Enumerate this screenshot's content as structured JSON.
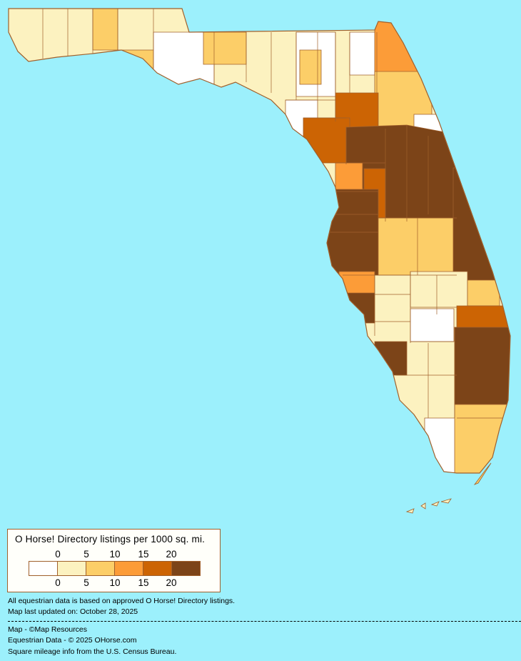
{
  "legend": {
    "title": "O Horse! Directory listings per 1000 sq. mi.",
    "ticks": [
      "0",
      "5",
      "10",
      "15",
      "20"
    ],
    "colors": [
      "#ffffff",
      "#fcf2c0",
      "#fcce68",
      "#fc9c38",
      "#cc6404",
      "#7c4418"
    ]
  },
  "map": {
    "background": "#9cf0fc",
    "border_color": "#a0602c"
  },
  "notes": {
    "data_basis": "All equestrian data is based on approved O Horse! Directory listings.",
    "updated": "Map last updated on: October 28, 2025"
  },
  "credits": {
    "map": "Map - ©Map Resources",
    "data": "Equestrian Data - © 2025 OHorse.com",
    "census": "Square mileage info from the U.S. Census Bureau."
  }
}
